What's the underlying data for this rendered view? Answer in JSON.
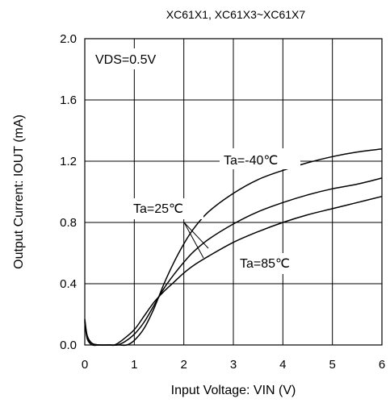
{
  "chart_data": {
    "type": "line",
    "title": "XC61X1, XC61X3~XC61X7",
    "xlabel": "Input Voltage:  VIN (V)",
    "ylabel": "Output Current: IOUT (mA)",
    "xlim": [
      0,
      6
    ],
    "ylim": [
      0,
      2.0
    ],
    "xticks": [
      "0",
      "1",
      "2",
      "3",
      "4",
      "5",
      "6"
    ],
    "yticks": [
      "0.0",
      "0.4",
      "0.8",
      "1.2",
      "1.6",
      "2.0"
    ],
    "grid": true,
    "condition_label": "VDS=0.5V",
    "series": [
      {
        "name": "Ta=-40℃",
        "x": [
          0.0,
          0.05,
          0.15,
          0.3,
          0.5,
          0.7,
          0.85,
          1.0,
          1.2,
          1.4,
          1.6,
          1.8,
          2.0,
          2.2,
          2.5,
          3.0,
          3.5,
          4.0,
          4.5,
          5.0,
          5.5,
          6.0
        ],
        "y": [
          0.17,
          0.06,
          0.01,
          0.0,
          0.0,
          0.0,
          0.0,
          0.03,
          0.11,
          0.24,
          0.4,
          0.54,
          0.66,
          0.76,
          0.87,
          0.99,
          1.08,
          1.14,
          1.19,
          1.23,
          1.26,
          1.28
        ]
      },
      {
        "name": "Ta=25℃",
        "x": [
          0.0,
          0.05,
          0.15,
          0.3,
          0.5,
          0.65,
          0.8,
          1.0,
          1.2,
          1.4,
          1.6,
          1.8,
          2.0,
          2.2,
          2.5,
          3.0,
          3.5,
          4.0,
          4.5,
          5.0,
          5.5,
          6.0
        ],
        "y": [
          0.16,
          0.05,
          0.01,
          0.0,
          0.0,
          0.0,
          0.02,
          0.07,
          0.15,
          0.26,
          0.37,
          0.46,
          0.54,
          0.61,
          0.69,
          0.79,
          0.87,
          0.93,
          0.98,
          1.02,
          1.05,
          1.09
        ]
      },
      {
        "name": "Ta=85℃",
        "x": [
          0.0,
          0.05,
          0.15,
          0.3,
          0.5,
          0.6,
          0.75,
          1.0,
          1.2,
          1.4,
          1.6,
          1.8,
          2.0,
          2.2,
          2.5,
          3.0,
          3.5,
          4.0,
          4.5,
          5.0,
          5.5,
          6.0
        ],
        "y": [
          0.15,
          0.04,
          0.0,
          0.0,
          0.0,
          0.0,
          0.03,
          0.1,
          0.19,
          0.28,
          0.35,
          0.41,
          0.47,
          0.52,
          0.58,
          0.67,
          0.74,
          0.8,
          0.85,
          0.89,
          0.93,
          0.97
        ]
      }
    ],
    "annotations": [
      {
        "text": "Ta=-40℃",
        "series": 0
      },
      {
        "text": "Ta=25℃",
        "series": 1
      },
      {
        "text": "Ta=85℃",
        "series": 2
      }
    ]
  }
}
